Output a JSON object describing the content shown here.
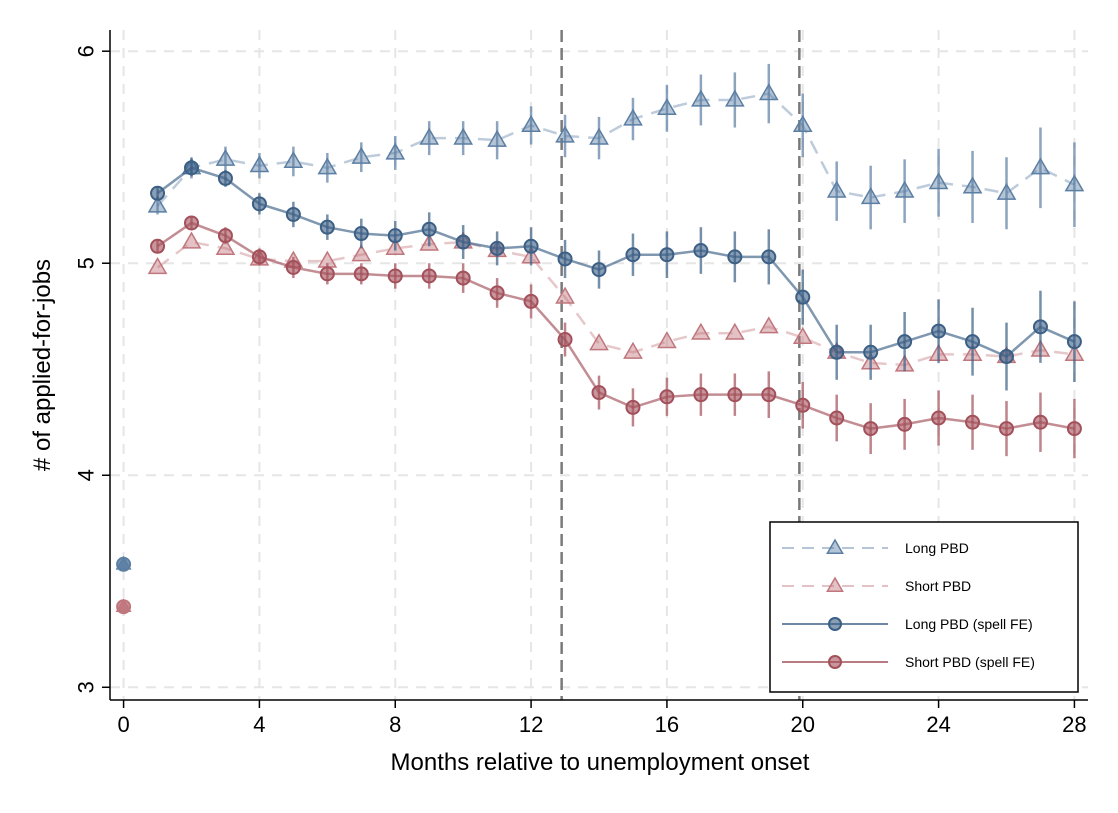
{
  "chart_data": {
    "type": "line",
    "title": "",
    "xlabel": "Months relative to unemployment onset",
    "ylabel": "# of applied-for-jobs",
    "xlim": [
      -0.4,
      28.4
    ],
    "ylim": [
      2.94,
      6.1
    ],
    "xticks": [
      0,
      4,
      8,
      12,
      16,
      20,
      24,
      28
    ],
    "xtick_labels": [
      "0",
      "4",
      "8",
      "12",
      "16",
      "20",
      "24",
      "28"
    ],
    "yticks": [
      3,
      4,
      5,
      6
    ],
    "ytick_labels": [
      "3",
      "4",
      "5",
      "6"
    ],
    "grid": true,
    "vlines": [
      12.9,
      19.9
    ],
    "legend_position": "bottom-right",
    "series": [
      {
        "name": "Long PBD",
        "style": "dashed",
        "marker": "triangle",
        "color": "#5b7ea3",
        "baseline": {
          "x": 0,
          "y": 3.58
        },
        "x": [
          1,
          2,
          3,
          4,
          5,
          6,
          7,
          8,
          9,
          10,
          11,
          12,
          13,
          14,
          15,
          16,
          17,
          18,
          19,
          20,
          21,
          22,
          23,
          24,
          25,
          26,
          27,
          28
        ],
        "y": [
          5.27,
          5.45,
          5.49,
          5.46,
          5.48,
          5.45,
          5.5,
          5.52,
          5.59,
          5.59,
          5.58,
          5.65,
          5.6,
          5.59,
          5.68,
          5.73,
          5.77,
          5.77,
          5.8,
          5.65,
          5.34,
          5.31,
          5.34,
          5.38,
          5.36,
          5.33,
          5.45,
          5.37
        ],
        "ci": [
          0.04,
          0.05,
          0.06,
          0.06,
          0.07,
          0.07,
          0.07,
          0.08,
          0.08,
          0.08,
          0.09,
          0.09,
          0.1,
          0.1,
          0.1,
          0.11,
          0.12,
          0.13,
          0.14,
          0.15,
          0.14,
          0.15,
          0.15,
          0.16,
          0.17,
          0.17,
          0.19,
          0.2
        ]
      },
      {
        "name": "Short PBD",
        "style": "dashed",
        "marker": "triangle",
        "color": "#c0767d",
        "baseline": {
          "x": 0,
          "y": 3.38
        },
        "x": [
          1,
          2,
          3,
          4,
          5,
          6,
          7,
          8,
          9,
          10,
          11,
          12,
          13,
          14,
          15,
          16,
          17,
          18,
          19,
          20,
          21,
          22,
          23,
          24,
          25,
          26,
          27,
          28
        ],
        "y": [
          4.98,
          5.1,
          5.07,
          5.02,
          5.01,
          5.01,
          5.04,
          5.07,
          5.09,
          5.1,
          5.06,
          5.03,
          4.84,
          4.62,
          4.58,
          4.63,
          4.67,
          4.67,
          4.7,
          4.65,
          4.58,
          4.53,
          4.52,
          4.57,
          4.57,
          4.56,
          4.59,
          4.57
        ]
      },
      {
        "name": "Long PBD (spell FE)",
        "style": "solid",
        "marker": "circle",
        "color": "#3c5f85",
        "x": [
          1,
          2,
          3,
          4,
          5,
          6,
          7,
          8,
          9,
          10,
          11,
          12,
          13,
          14,
          15,
          16,
          17,
          18,
          19,
          20,
          21,
          22,
          23,
          24,
          25,
          26,
          27,
          28
        ],
        "y": [
          5.33,
          5.45,
          5.4,
          5.28,
          5.23,
          5.17,
          5.14,
          5.13,
          5.16,
          5.1,
          5.07,
          5.08,
          5.02,
          4.97,
          5.04,
          5.04,
          5.06,
          5.03,
          5.03,
          4.84,
          4.58,
          4.58,
          4.63,
          4.68,
          4.63,
          4.56,
          4.7,
          4.63
        ],
        "ci": [
          0.03,
          0.04,
          0.04,
          0.05,
          0.06,
          0.06,
          0.07,
          0.07,
          0.08,
          0.08,
          0.08,
          0.09,
          0.09,
          0.09,
          0.1,
          0.11,
          0.11,
          0.12,
          0.13,
          0.13,
          0.13,
          0.13,
          0.14,
          0.15,
          0.16,
          0.16,
          0.17,
          0.19
        ]
      },
      {
        "name": "Short PBD (spell FE)",
        "style": "solid",
        "marker": "circle",
        "color": "#a3505a",
        "x": [
          1,
          2,
          3,
          4,
          5,
          6,
          7,
          8,
          9,
          10,
          11,
          12,
          13,
          14,
          15,
          16,
          17,
          18,
          19,
          20,
          21,
          22,
          23,
          24,
          25,
          26,
          27,
          28
        ],
        "y": [
          5.08,
          5.19,
          5.13,
          5.03,
          4.98,
          4.95,
          4.95,
          4.94,
          4.94,
          4.93,
          4.86,
          4.82,
          4.64,
          4.39,
          4.32,
          4.37,
          4.38,
          4.38,
          4.38,
          4.33,
          4.27,
          4.22,
          4.24,
          4.27,
          4.25,
          4.22,
          4.25,
          4.22
        ],
        "ci": [
          0.03,
          0.03,
          0.04,
          0.04,
          0.05,
          0.05,
          0.05,
          0.06,
          0.06,
          0.07,
          0.07,
          0.08,
          0.08,
          0.08,
          0.09,
          0.09,
          0.1,
          0.1,
          0.11,
          0.11,
          0.11,
          0.12,
          0.12,
          0.13,
          0.13,
          0.13,
          0.14,
          0.14
        ]
      }
    ]
  }
}
